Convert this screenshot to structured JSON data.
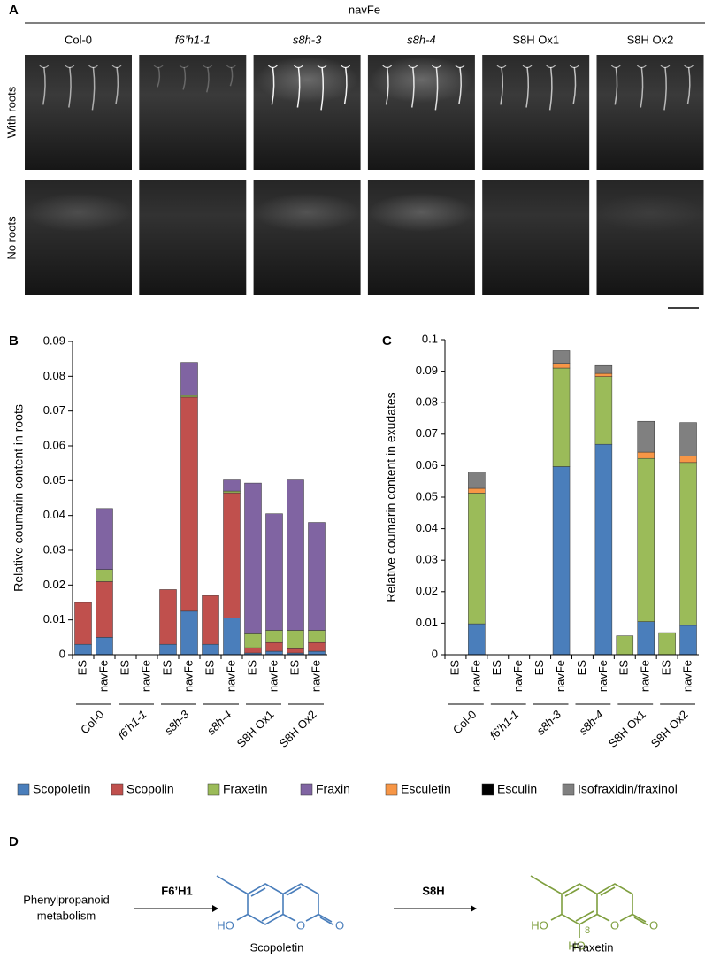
{
  "panel_a": {
    "letter": "A",
    "title": "navFe",
    "columns": [
      "Col-0",
      "f6’h1-1",
      "s8h-3",
      "s8h-4",
      "S8H Ox1",
      "S8H Ox2"
    ],
    "rows": [
      "With roots",
      "No roots"
    ]
  },
  "chart_data": [
    {
      "type": "bar",
      "stacked": true,
      "letter": "B",
      "ylabel": "Relative coumarin content in roots",
      "categories": [
        "ES",
        "navFe",
        "ES",
        "navFe",
        "ES",
        "navFe",
        "ES",
        "navFe",
        "ES",
        "navFe",
        "ES",
        "navFe"
      ],
      "groups": [
        "Col-0",
        "f6’h1-1",
        "s8h-3",
        "s8h-4",
        "S8H Ox1",
        "S8H Ox2"
      ],
      "ylim": [
        0,
        0.09
      ],
      "yticks": [
        0,
        0.01,
        0.02,
        0.03,
        0.04,
        0.05,
        0.06,
        0.07,
        0.08,
        0.09
      ],
      "series": [
        {
          "name": "Scopoletin",
          "color": "#4a7ebb",
          "values": [
            0.003,
            0.005,
            0,
            0,
            0.003,
            0.0125,
            0.003,
            0.0105,
            0.0005,
            0.001,
            0.0005,
            0.001
          ]
        },
        {
          "name": "Scopolin",
          "color": "#c0504d",
          "values": [
            0.012,
            0.016,
            0,
            0,
            0.0157,
            0.0615,
            0.014,
            0.036,
            0.0015,
            0.0025,
            0.0012,
            0.0025
          ]
        },
        {
          "name": "Fraxetin",
          "color": "#9bbb59",
          "values": [
            0,
            0.0035,
            0,
            0,
            0,
            0.0005,
            0,
            0.0005,
            0.004,
            0.0035,
            0.0053,
            0.0035
          ]
        },
        {
          "name": "Fraxin",
          "color": "#8064a2",
          "values": [
            0,
            0.0175,
            0,
            0,
            0,
            0.0095,
            0,
            0.0032,
            0.0433,
            0.0335,
            0.0432,
            0.031
          ]
        },
        {
          "name": "Esculetin",
          "color": "#f79646",
          "values": [
            0,
            0,
            0,
            0,
            0,
            0,
            0,
            0,
            0,
            0,
            0,
            0
          ]
        },
        {
          "name": "Esculin",
          "color": "#000000",
          "values": [
            0,
            0,
            0,
            0,
            0,
            0,
            0,
            0,
            0,
            0,
            0,
            0
          ]
        },
        {
          "name": "Isofraxidin/fraxinol",
          "color": "#808080",
          "values": [
            0,
            0,
            0,
            0,
            0,
            0,
            0,
            0,
            0,
            0,
            0,
            0
          ]
        }
      ]
    },
    {
      "type": "bar",
      "stacked": true,
      "letter": "C",
      "ylabel": "Relative coumarin content in exudates",
      "categories": [
        "ES",
        "navFe",
        "ES",
        "navFe",
        "ES",
        "navFe",
        "ES",
        "navFe",
        "ES",
        "navFe",
        "ES",
        "navFe"
      ],
      "groups": [
        "Col-0",
        "f6’h1-1",
        "s8h-3",
        "s8h-4",
        "S8H Ox1",
        "S8H Ox2"
      ],
      "ylim": [
        0,
        0.1
      ],
      "yticks": [
        0,
        0.01,
        0.02,
        0.03,
        0.04,
        0.05,
        0.06,
        0.07,
        0.08,
        0.09,
        0.1
      ],
      "series": [
        {
          "name": "Scopoletin",
          "color": "#4a7ebb",
          "values": [
            0,
            0.0098,
            0,
            0,
            0,
            0.0597,
            0,
            0.0668,
            0,
            0.0105,
            0,
            0.0093
          ]
        },
        {
          "name": "Scopolin",
          "color": "#c0504d",
          "values": [
            0,
            0,
            0,
            0,
            0,
            0,
            0,
            0,
            0,
            0,
            0,
            0
          ]
        },
        {
          "name": "Fraxetin",
          "color": "#9bbb59",
          "values": [
            0,
            0.0415,
            0,
            0,
            0,
            0.0313,
            0,
            0.0215,
            0.006,
            0.0518,
            0.007,
            0.0517
          ]
        },
        {
          "name": "Fraxin",
          "color": "#8064a2",
          "values": [
            0,
            0,
            0,
            0,
            0,
            0,
            0,
            0,
            0,
            0,
            0,
            0
          ]
        },
        {
          "name": "Esculetin",
          "color": "#f79646",
          "values": [
            0,
            0.0015,
            0,
            0,
            0,
            0.0015,
            0,
            0.001,
            0,
            0.002,
            0,
            0.002
          ]
        },
        {
          "name": "Esculin",
          "color": "#000000",
          "values": [
            0,
            0,
            0,
            0,
            0,
            0,
            0,
            0,
            0,
            0,
            0,
            0
          ]
        },
        {
          "name": "Isofraxidin/fraxinol",
          "color": "#808080",
          "values": [
            0,
            0.0052,
            0,
            0,
            0,
            0.004,
            0,
            0.0025,
            0,
            0.0098,
            0,
            0.0107
          ]
        }
      ]
    }
  ],
  "panel_d": {
    "letter": "D",
    "source": [
      "Phenylpropanoid",
      "metabolism"
    ],
    "enzymes": [
      "F6’H1",
      "S8H"
    ],
    "compounds": [
      "Scopoletin",
      "Fraxetin"
    ],
    "scopoletin_atoms": [
      "HO",
      "O",
      "O"
    ],
    "fraxetin_atoms": [
      "HO",
      "HO",
      "8",
      "O",
      "O"
    ]
  }
}
